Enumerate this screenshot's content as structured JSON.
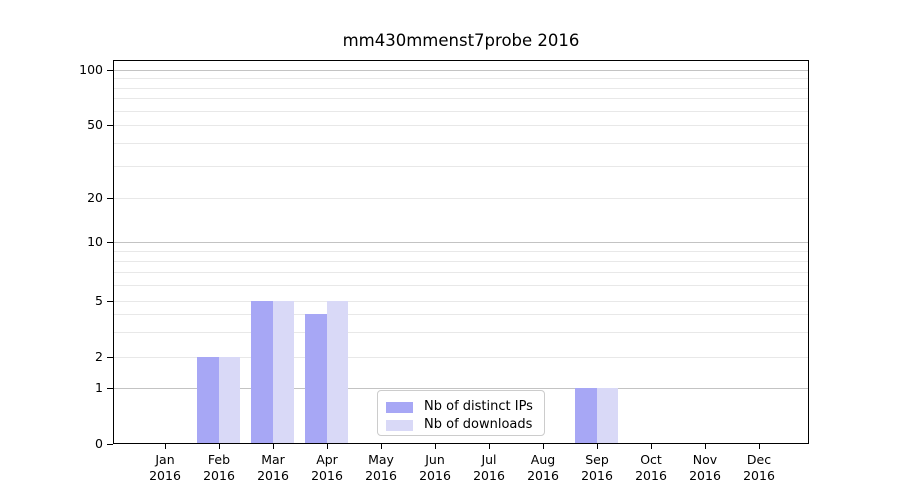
{
  "chart_data": {
    "type": "bar",
    "title": "mm430mmenst7probe 2016",
    "categories": [
      "Jan",
      "Feb",
      "Mar",
      "Apr",
      "May",
      "Jun",
      "Jul",
      "Aug",
      "Sep",
      "Oct",
      "Nov",
      "Dec"
    ],
    "category_year": "2016",
    "series": [
      {
        "name": "Nb of distinct IPs",
        "color": "#a7a7f5",
        "values": [
          null,
          2,
          5,
          4,
          null,
          null,
          null,
          null,
          1,
          null,
          null,
          null
        ]
      },
      {
        "name": "Nb of downloads",
        "color": "#d9d9f7",
        "values": [
          null,
          2,
          5,
          5,
          null,
          null,
          null,
          null,
          1,
          null,
          null,
          null
        ]
      }
    ],
    "y_axis": {
      "ticks": [
        0,
        1,
        2,
        5,
        10,
        20,
        50,
        100
      ],
      "scale": "log-with-zero-baseline",
      "range": [
        0,
        100
      ]
    },
    "x_axis": {
      "year_suffix": "2016"
    },
    "grid": {
      "horizontal": true,
      "vertical": false,
      "decade_values": [
        1,
        10,
        100
      ],
      "minor_values": [
        3,
        4,
        6,
        7,
        8,
        9,
        30,
        40,
        60,
        70,
        80,
        90
      ],
      "light_major_values": [
        2,
        5,
        20,
        50
      ],
      "decade_color": "#c3c3c3",
      "minor_color": "#e8e8e8"
    },
    "legend": {
      "position": "lower-center",
      "entries": [
        "Nb of distinct IPs",
        "Nb of downloads"
      ]
    },
    "colors": {
      "spine": "#000000",
      "background": "#ffffff",
      "bar_distinct_ips": "#a7a7f5",
      "bar_downloads": "#d9d9f7"
    }
  }
}
